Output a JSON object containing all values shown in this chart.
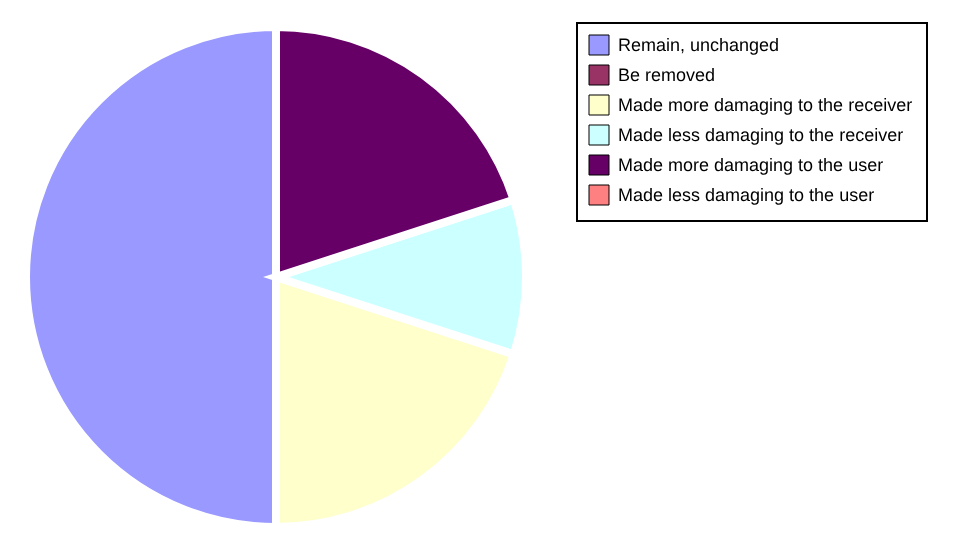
{
  "chart_data": {
    "type": "pie",
    "categories": [
      "Remain, unchanged",
      "Be removed",
      "Made more damaging to the receiver",
      "Made less damaging to the receiver",
      "Made more damaging to the user",
      "Made less damaging to the user"
    ],
    "values": [
      50,
      0,
      20,
      10,
      20,
      0
    ],
    "colors": [
      "#9999ff",
      "#993366",
      "#ffffcc",
      "#ccffff",
      "#660066",
      "#ff8080"
    ],
    "legend": "right"
  }
}
